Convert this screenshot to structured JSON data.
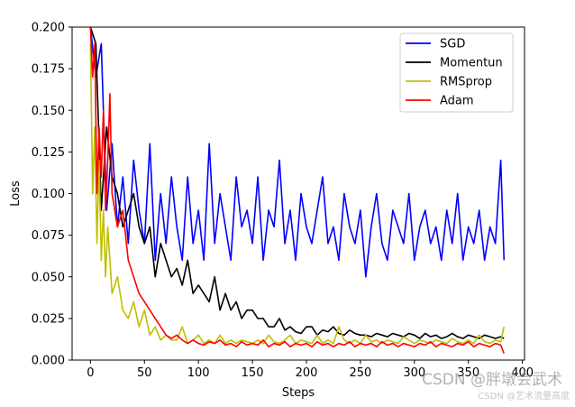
{
  "chart_data": {
    "type": "line",
    "xlabel": "Steps",
    "ylabel": "Loss",
    "xlim": [
      -17,
      402
    ],
    "ylim": [
      0,
      0.2
    ],
    "xticks": [
      "0",
      "50",
      "100",
      "150",
      "200",
      "250",
      "300",
      "350",
      "400"
    ],
    "yticks": [
      "0.000",
      "0.025",
      "0.050",
      "0.075",
      "0.100",
      "0.125",
      "0.150",
      "0.175",
      "0.200"
    ],
    "legend_position": "top-right",
    "grid": false,
    "series": [
      {
        "name": "SGD",
        "color": "#0000ff",
        "x": [
          0,
          5,
          10,
          15,
          20,
          25,
          30,
          35,
          40,
          45,
          50,
          55,
          60,
          65,
          70,
          75,
          80,
          85,
          90,
          95,
          100,
          105,
          110,
          115,
          120,
          125,
          130,
          135,
          140,
          145,
          150,
          155,
          160,
          165,
          170,
          175,
          180,
          185,
          190,
          195,
          200,
          205,
          210,
          215,
          220,
          225,
          230,
          235,
          240,
          245,
          250,
          255,
          260,
          265,
          270,
          275,
          280,
          285,
          290,
          295,
          300,
          305,
          310,
          315,
          320,
          325,
          330,
          335,
          340,
          345,
          350,
          355,
          360,
          365,
          370,
          375,
          380,
          383
        ],
        "y": [
          0.2,
          0.17,
          0.19,
          0.09,
          0.13,
          0.08,
          0.11,
          0.07,
          0.12,
          0.09,
          0.07,
          0.13,
          0.06,
          0.1,
          0.07,
          0.11,
          0.08,
          0.06,
          0.11,
          0.07,
          0.09,
          0.06,
          0.13,
          0.07,
          0.1,
          0.08,
          0.06,
          0.11,
          0.08,
          0.09,
          0.07,
          0.11,
          0.06,
          0.09,
          0.08,
          0.12,
          0.07,
          0.09,
          0.06,
          0.1,
          0.08,
          0.07,
          0.09,
          0.11,
          0.07,
          0.08,
          0.06,
          0.1,
          0.08,
          0.07,
          0.09,
          0.05,
          0.08,
          0.1,
          0.07,
          0.06,
          0.09,
          0.08,
          0.07,
          0.1,
          0.06,
          0.08,
          0.09,
          0.07,
          0.08,
          0.06,
          0.09,
          0.07,
          0.1,
          0.06,
          0.08,
          0.07,
          0.09,
          0.06,
          0.08,
          0.07,
          0.12,
          0.06
        ]
      },
      {
        "name": "Momentun",
        "color": "#000000",
        "x": [
          0,
          5,
          10,
          15,
          20,
          25,
          30,
          35,
          40,
          45,
          50,
          55,
          60,
          65,
          70,
          75,
          80,
          85,
          90,
          95,
          100,
          105,
          110,
          115,
          120,
          125,
          130,
          135,
          140,
          145,
          150,
          155,
          160,
          165,
          170,
          175,
          180,
          185,
          190,
          195,
          200,
          205,
          210,
          215,
          220,
          225,
          230,
          235,
          240,
          245,
          250,
          255,
          260,
          265,
          270,
          275,
          280,
          285,
          290,
          295,
          300,
          305,
          310,
          315,
          320,
          325,
          330,
          335,
          340,
          345,
          350,
          355,
          360,
          365,
          370,
          375,
          380,
          383
        ],
        "y": [
          0.2,
          0.19,
          0.09,
          0.14,
          0.11,
          0.1,
          0.08,
          0.09,
          0.1,
          0.08,
          0.07,
          0.08,
          0.05,
          0.07,
          0.06,
          0.05,
          0.055,
          0.045,
          0.06,
          0.04,
          0.045,
          0.04,
          0.035,
          0.05,
          0.03,
          0.04,
          0.03,
          0.035,
          0.025,
          0.03,
          0.03,
          0.025,
          0.025,
          0.02,
          0.02,
          0.025,
          0.018,
          0.02,
          0.017,
          0.016,
          0.02,
          0.02,
          0.015,
          0.018,
          0.017,
          0.02,
          0.016,
          0.015,
          0.018,
          0.016,
          0.015,
          0.015,
          0.014,
          0.016,
          0.015,
          0.014,
          0.016,
          0.015,
          0.014,
          0.016,
          0.015,
          0.013,
          0.016,
          0.014,
          0.015,
          0.013,
          0.014,
          0.016,
          0.014,
          0.013,
          0.015,
          0.014,
          0.013,
          0.015,
          0.014,
          0.013,
          0.014,
          0.013
        ]
      },
      {
        "name": "RMSprop",
        "color": "#bfbf00",
        "x": [
          0,
          2,
          4,
          6,
          8,
          10,
          12,
          14,
          16,
          18,
          20,
          25,
          30,
          35,
          40,
          45,
          50,
          55,
          60,
          65,
          70,
          75,
          80,
          85,
          90,
          95,
          100,
          105,
          110,
          115,
          120,
          125,
          130,
          135,
          140,
          145,
          150,
          155,
          160,
          165,
          170,
          175,
          180,
          185,
          190,
          195,
          200,
          205,
          210,
          215,
          220,
          225,
          230,
          235,
          240,
          245,
          250,
          255,
          260,
          265,
          270,
          275,
          280,
          285,
          290,
          295,
          300,
          305,
          310,
          315,
          320,
          325,
          330,
          335,
          340,
          345,
          350,
          355,
          360,
          365,
          370,
          375,
          380,
          383
        ],
        "y": [
          0.19,
          0.1,
          0.14,
          0.07,
          0.12,
          0.06,
          0.09,
          0.05,
          0.08,
          0.06,
          0.04,
          0.05,
          0.03,
          0.025,
          0.035,
          0.02,
          0.03,
          0.015,
          0.02,
          0.012,
          0.015,
          0.012,
          0.012,
          0.02,
          0.01,
          0.012,
          0.015,
          0.01,
          0.012,
          0.01,
          0.015,
          0.01,
          0.012,
          0.01,
          0.012,
          0.011,
          0.01,
          0.012,
          0.01,
          0.015,
          0.011,
          0.01,
          0.012,
          0.015,
          0.01,
          0.012,
          0.011,
          0.01,
          0.015,
          0.01,
          0.012,
          0.01,
          0.02,
          0.012,
          0.01,
          0.012,
          0.01,
          0.015,
          0.011,
          0.012,
          0.01,
          0.012,
          0.011,
          0.01,
          0.014,
          0.012,
          0.01,
          0.012,
          0.011,
          0.01,
          0.012,
          0.011,
          0.01,
          0.013,
          0.011,
          0.01,
          0.012,
          0.01,
          0.015,
          0.011,
          0.01,
          0.012,
          0.011,
          0.02
        ]
      },
      {
        "name": "Adam",
        "color": "#ff0000",
        "x": [
          0,
          2,
          4,
          6,
          8,
          10,
          12,
          14,
          16,
          18,
          20,
          25,
          30,
          35,
          40,
          45,
          50,
          55,
          60,
          65,
          70,
          75,
          80,
          85,
          90,
          95,
          100,
          105,
          110,
          115,
          120,
          125,
          130,
          135,
          140,
          145,
          150,
          155,
          160,
          165,
          170,
          175,
          180,
          185,
          190,
          195,
          200,
          205,
          210,
          215,
          220,
          225,
          230,
          235,
          240,
          245,
          250,
          255,
          260,
          265,
          270,
          275,
          280,
          285,
          290,
          295,
          300,
          305,
          310,
          315,
          320,
          325,
          330,
          335,
          340,
          345,
          350,
          355,
          360,
          365,
          370,
          375,
          380,
          383
        ],
        "y": [
          0.2,
          0.17,
          0.19,
          0.1,
          0.14,
          0.11,
          0.15,
          0.09,
          0.12,
          0.16,
          0.1,
          0.08,
          0.09,
          0.06,
          0.05,
          0.04,
          0.035,
          0.03,
          0.025,
          0.02,
          0.015,
          0.013,
          0.015,
          0.012,
          0.01,
          0.012,
          0.01,
          0.009,
          0.011,
          0.01,
          0.012,
          0.009,
          0.01,
          0.008,
          0.011,
          0.009,
          0.01,
          0.009,
          0.012,
          0.008,
          0.01,
          0.009,
          0.011,
          0.008,
          0.01,
          0.009,
          0.01,
          0.008,
          0.011,
          0.009,
          0.01,
          0.008,
          0.01,
          0.009,
          0.011,
          0.008,
          0.01,
          0.009,
          0.01,
          0.008,
          0.011,
          0.009,
          0.01,
          0.008,
          0.01,
          0.009,
          0.008,
          0.01,
          0.009,
          0.011,
          0.008,
          0.01,
          0.009,
          0.008,
          0.01,
          0.009,
          0.011,
          0.008,
          0.01,
          0.009,
          0.008,
          0.01,
          0.009,
          0.004
        ]
      }
    ]
  },
  "watermark": {
    "main": "CSDN @胖墩会武术",
    "sub": "CSDN @艺术流量高度"
  }
}
